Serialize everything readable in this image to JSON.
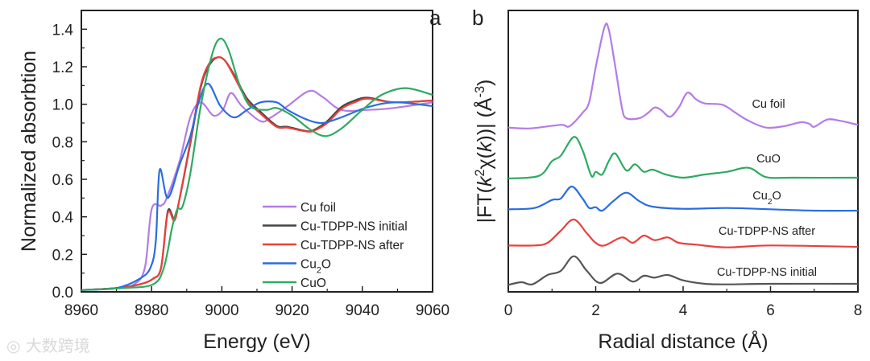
{
  "watermark": "大数跨境",
  "chart_data": [
    {
      "type": "line",
      "panel_label": "a",
      "title": "",
      "xlabel": "Energy (eV)",
      "ylabel": "Normalized absorbtion",
      "xlim": [
        8960,
        9060
      ],
      "ylim": [
        0,
        1.5
      ],
      "xticks": [
        "8960",
        "8980",
        "9000",
        "9020",
        "9040",
        "9060"
      ],
      "yticks": [
        "0.0",
        "0.2",
        "0.4",
        "0.6",
        "0.8",
        "1.0",
        "1.2",
        "1.4"
      ],
      "legend_position": "bottom-right",
      "series": [
        {
          "name": "Cu foil",
          "color": "#b57be6",
          "x": [
            8960,
            8970,
            8975,
            8978.1,
            8980,
            8982.7,
            8984.3,
            8988,
            8991,
            8994,
            8997.6,
            9000.3,
            9002.6,
            9005.7,
            9011,
            9014,
            9018.7,
            9024.8,
            9028.6,
            9034,
            9041.6,
            9049,
            9060
          ],
          "y": [
            0.01,
            0.02,
            0.04,
            0.13,
            0.44,
            0.46,
            0.5,
            0.7,
            0.93,
            1.01,
            0.94,
            0.97,
            1.06,
            0.99,
            0.91,
            0.93,
            0.99,
            1.07,
            1.04,
            0.97,
            0.97,
            0.98,
            1.01
          ]
        },
        {
          "name": "Cu-TDPP-NS initial",
          "color": "#444444",
          "x": [
            8960,
            8970,
            8976.6,
            8980.4,
            8982.7,
            8984.6,
            8986.5,
            8988,
            8991,
            8994,
            8996.5,
            8998.8,
            9001,
            9004,
            9007.2,
            9011,
            9015.6,
            9018.7,
            9024,
            9026.3,
            9030,
            9034,
            9037.8,
            9041.6,
            9049,
            9060
          ],
          "y": [
            0.01,
            0.02,
            0.04,
            0.07,
            0.13,
            0.43,
            0.39,
            0.5,
            0.79,
            1.09,
            1.21,
            1.25,
            1.23,
            1.14,
            1.03,
            0.96,
            0.885,
            0.88,
            0.857,
            0.864,
            0.91,
            0.985,
            1.02,
            1.035,
            1.01,
            1.02
          ]
        },
        {
          "name": "Cu-TDPP-NS after",
          "color": "#e8413c",
          "x": [
            8960,
            8970,
            8976.6,
            8980.4,
            8982.7,
            8984.6,
            8986.5,
            8988,
            8991,
            8994,
            8996.5,
            8998.8,
            9001,
            9004,
            9007.2,
            9011,
            9015.6,
            9018.7,
            9024,
            9026.3,
            9030,
            9034,
            9037.8,
            9041.6,
            9049,
            9060
          ],
          "y": [
            0.01,
            0.02,
            0.04,
            0.07,
            0.13,
            0.42,
            0.38,
            0.5,
            0.8,
            1.1,
            1.22,
            1.25,
            1.23,
            1.13,
            1.02,
            0.95,
            0.88,
            0.875,
            0.855,
            0.86,
            0.9,
            0.975,
            1.01,
            1.03,
            1.01,
            1.02
          ]
        },
        {
          "name": "Cu2O",
          "display_name": [
            "Cu",
            "2",
            "O"
          ],
          "color": "#2a6de0",
          "x": [
            8960,
            8970,
            8976.6,
            8979.7,
            8981.2,
            8982.3,
            8984.6,
            8988,
            8991,
            8993.4,
            8996.1,
            8999.6,
            9003.4,
            9007.2,
            9011,
            9015.6,
            9018.7,
            9024,
            9028.6,
            9034,
            9041.6,
            9049.5,
            9060
          ],
          "y": [
            0.01,
            0.02,
            0.07,
            0.13,
            0.27,
            0.65,
            0.5,
            0.68,
            0.83,
            1.01,
            1.11,
            0.99,
            0.93,
            0.97,
            1.01,
            1.01,
            0.97,
            0.92,
            0.9,
            0.93,
            0.985,
            1.01,
            0.99
          ]
        },
        {
          "name": "CuO",
          "color": "#2eaa62",
          "x": [
            8960,
            8972,
            8980.4,
            8983.5,
            8985.8,
            8987.3,
            8988.8,
            8991,
            8994,
            8997.3,
            8999.6,
            9001.9,
            9004.9,
            9008,
            9012.6,
            9015.6,
            9020,
            9024.8,
            9029.4,
            9034,
            9040,
            9045.5,
            9052.3,
            9060
          ],
          "y": [
            0.01,
            0.02,
            0.04,
            0.13,
            0.34,
            0.44,
            0.455,
            0.63,
            0.99,
            1.27,
            1.35,
            1.29,
            1.11,
            0.99,
            0.97,
            0.98,
            0.94,
            0.87,
            0.83,
            0.87,
            0.97,
            1.05,
            1.086,
            1.05
          ]
        }
      ]
    },
    {
      "type": "line",
      "panel_label": "b",
      "title": "",
      "xlabel": "Radial distance (Å)",
      "ylabel": "|FT(k²χ(k))| (Å⁻³)",
      "ylabel_parts": [
        "|FT(",
        "k",
        "2",
        "χ(",
        "k",
        "))| (Å",
        "-3",
        ")"
      ],
      "xlim": [
        0,
        8
      ],
      "ylim": [
        0,
        10.5
      ],
      "y_units": "arbitrary (curves vertically offset)",
      "xticks": [
        "0",
        "2",
        "4",
        "6",
        "8"
      ],
      "series": [
        {
          "name": "Cu foil",
          "color": "#b57be6",
          "x": [
            0,
            0.5,
            1.2,
            1.4,
            1.7,
            1.85,
            2.0,
            2.2,
            2.3,
            2.45,
            2.6,
            2.7,
            3.0,
            3.2,
            3.35,
            3.5,
            3.7,
            3.9,
            4.1,
            4.3,
            4.5,
            4.9,
            5.2,
            5.5,
            5.9,
            6.3,
            6.7,
            6.9,
            7.0,
            7.3,
            7.6,
            8.0
          ],
          "y": [
            6.13,
            6.1,
            6.23,
            6.18,
            6.68,
            7.08,
            8.38,
            9.88,
            9.78,
            8.38,
            6.88,
            6.48,
            6.48,
            6.68,
            6.88,
            6.78,
            6.53,
            6.88,
            7.43,
            7.18,
            7.03,
            6.98,
            6.68,
            6.38,
            6.13,
            6.18,
            6.33,
            6.26,
            6.16,
            6.43,
            6.38,
            6.23
          ]
        },
        {
          "name": "CuO",
          "color": "#2eaa62",
          "x": [
            0,
            0.7,
            1.0,
            1.2,
            1.5,
            1.7,
            1.9,
            2.0,
            2.15,
            2.3,
            2.45,
            2.7,
            2.9,
            3.1,
            3.3,
            3.6,
            4.0,
            4.5,
            5.0,
            5.5,
            5.9,
            6.5,
            8.0
          ],
          "y": [
            4.23,
            4.33,
            4.88,
            5.08,
            5.78,
            5.28,
            4.33,
            4.48,
            4.38,
            4.88,
            5.16,
            4.53,
            4.76,
            4.48,
            4.56,
            4.38,
            4.26,
            4.38,
            4.48,
            4.63,
            4.28,
            4.26,
            4.26
          ]
        },
        {
          "name": "Cu2O",
          "display_name": [
            "Cu",
            "2",
            "O"
          ],
          "color": "#2a6de0",
          "x": [
            0,
            0.6,
            1.0,
            1.2,
            1.45,
            1.7,
            1.85,
            2.0,
            2.15,
            2.4,
            2.7,
            3.0,
            3.3,
            4.0,
            5.0,
            6.0,
            7.0,
            8.0
          ],
          "y": [
            3.08,
            3.13,
            3.43,
            3.48,
            3.93,
            3.48,
            3.13,
            3.16,
            3.03,
            3.38,
            3.7,
            3.38,
            3.18,
            3.1,
            3.13,
            3.08,
            3.03,
            3.03
          ]
        },
        {
          "name": "Cu-TDPP-NS after",
          "color": "#e8413c",
          "x": [
            0,
            0.6,
            0.9,
            1.2,
            1.5,
            1.8,
            2.0,
            2.2,
            2.6,
            2.85,
            3.1,
            3.35,
            3.65,
            3.9,
            4.3,
            5.0,
            6.0,
            8.0
          ],
          "y": [
            1.73,
            1.73,
            1.83,
            2.28,
            2.7,
            2.18,
            1.83,
            1.73,
            2.03,
            1.83,
            2.1,
            1.93,
            2.03,
            1.83,
            1.76,
            1.66,
            1.73,
            1.68
          ]
        },
        {
          "name": "Cu-TDPP-NS initial",
          "color": "#555555",
          "x": [
            0,
            0.3,
            0.55,
            0.9,
            1.2,
            1.5,
            1.8,
            2.1,
            2.5,
            2.85,
            3.1,
            3.35,
            3.65,
            4.0,
            4.5,
            5.0,
            6.0,
            8.0
          ],
          "y": [
            0.26,
            0.36,
            0.28,
            0.63,
            0.78,
            1.33,
            0.78,
            0.33,
            0.68,
            0.38,
            0.6,
            0.53,
            0.63,
            0.43,
            0.3,
            0.28,
            0.3,
            0.3
          ]
        }
      ]
    }
  ]
}
